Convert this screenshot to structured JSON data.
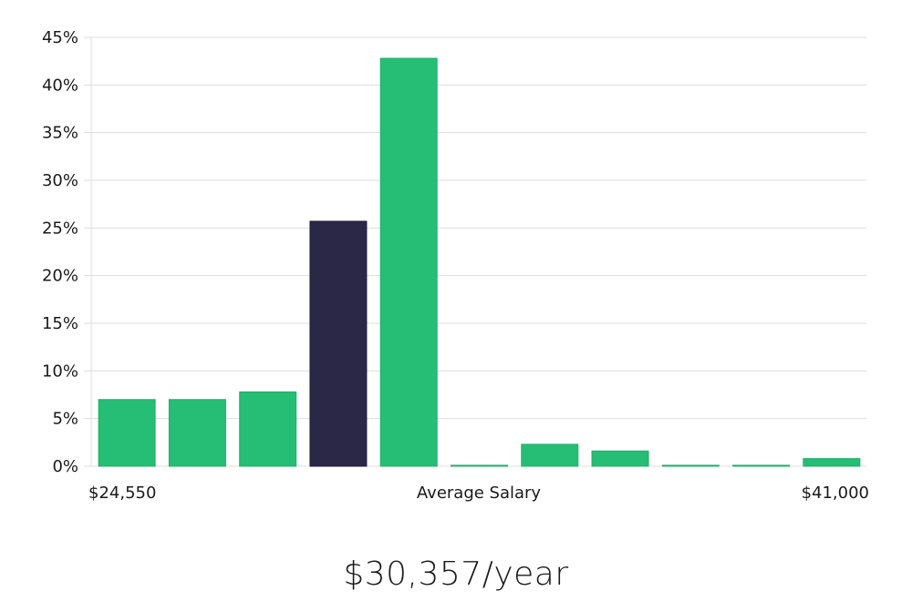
{
  "chart_data": {
    "type": "bar",
    "categories": [
      "1",
      "2",
      "3",
      "4",
      "5",
      "6",
      "7",
      "8",
      "9",
      "10",
      "11"
    ],
    "values": [
      7.0,
      7.0,
      7.8,
      25.7,
      42.8,
      0.1,
      2.3,
      1.6,
      0.1,
      0.1,
      0.8
    ],
    "highlight_index": 3,
    "ylim": [
      0,
      45
    ],
    "yticks": [
      0,
      5,
      10,
      15,
      20,
      25,
      30,
      35,
      40,
      45
    ],
    "ytick_suffix": "%",
    "x_min_label": "$24,550",
    "x_mid_label": "Average Salary",
    "x_max_label": "$41,000",
    "grid": true,
    "colors": {
      "bar": "#26bd74",
      "highlight": "#2a2747",
      "grid": "#dddddd"
    }
  },
  "salary": "$30,357/year"
}
